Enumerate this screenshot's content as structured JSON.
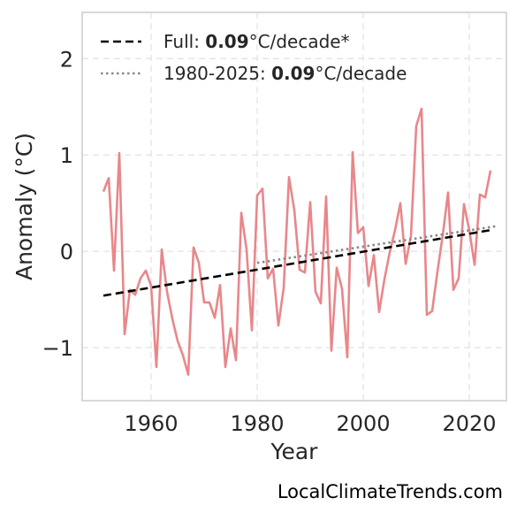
{
  "chart_data": {
    "type": "line",
    "xlabel": "Year",
    "ylabel": "Anomaly (°C)",
    "xlim": [
      1947,
      2027
    ],
    "ylim": [
      -1.55,
      2.48
    ],
    "x_ticks": [
      1960,
      1980,
      2000,
      2020
    ],
    "y_ticks": [
      2,
      1,
      0,
      -1
    ],
    "y_tick_labels": [
      "2",
      "1",
      "0",
      "−1"
    ],
    "grid": true,
    "legend_position": "top-left",
    "series": [
      {
        "style": "solid",
        "color": "#e8878a",
        "x": [
          1951,
          1952,
          1953,
          1954,
          1955,
          1956,
          1957,
          1958,
          1959,
          1960,
          1961,
          1962,
          1963,
          1964,
          1965,
          1966,
          1967,
          1968,
          1969,
          1970,
          1971,
          1972,
          1973,
          1974,
          1975,
          1976,
          1977,
          1978,
          1979,
          1980,
          1981,
          1982,
          1983,
          1984,
          1985,
          1986,
          1987,
          1988,
          1989,
          1990,
          1991,
          1992,
          1993,
          1994,
          1995,
          1996,
          1997,
          1998,
          1999,
          2000,
          2001,
          2002,
          2003,
          2004,
          2005,
          2006,
          2007,
          2008,
          2009,
          2010,
          2011,
          2012,
          2013,
          2014,
          2015,
          2016,
          2017,
          2018,
          2019,
          2020,
          2021,
          2022,
          2023,
          2024
        ],
        "values": [
          0.62,
          0.76,
          -0.2,
          1.02,
          -0.86,
          -0.4,
          -0.45,
          -0.28,
          -0.2,
          -0.36,
          -1.2,
          0.02,
          -0.42,
          -0.7,
          -0.93,
          -1.08,
          -1.28,
          0.04,
          -0.12,
          -0.53,
          -0.53,
          -0.69,
          -0.35,
          -1.2,
          -0.8,
          -1.13,
          0.4,
          0.02,
          -0.82,
          0.58,
          0.65,
          -0.28,
          -0.18,
          -0.77,
          -0.38,
          0.77,
          0.43,
          -0.19,
          -0.22,
          0.51,
          -0.42,
          -0.54,
          0.57,
          -1.03,
          -0.17,
          -0.39,
          -1.1,
          1.03,
          0.19,
          0.25,
          -0.36,
          -0.04,
          -0.63,
          -0.29,
          -0.01,
          0.22,
          0.5,
          -0.13,
          0.16,
          1.3,
          1.48,
          -0.66,
          -0.62,
          -0.21,
          0.17,
          0.61,
          -0.4,
          -0.28,
          0.49,
          0.22,
          -0.14,
          0.59,
          0.56,
          0.84
        ]
      }
    ],
    "trend_lines": [
      {
        "style": "dashed",
        "color": "#000000",
        "x": [
          1951,
          2024
        ],
        "values": [
          -0.46,
          0.22
        ]
      },
      {
        "style": "dotted",
        "color": "#888888",
        "x": [
          1980,
          2025
        ],
        "values": [
          -0.12,
          0.26
        ]
      }
    ],
    "legend": [
      {
        "style": "dashed",
        "color": "#000000",
        "prefix": "Full: ",
        "bold": "0.09",
        "suffix": "°C/decade*"
      },
      {
        "style": "dotted",
        "color": "#888888",
        "prefix": "1980-2025: ",
        "bold": "0.09",
        "suffix": "°C/decade"
      }
    ]
  },
  "credit": "LocalClimateTrends.com"
}
